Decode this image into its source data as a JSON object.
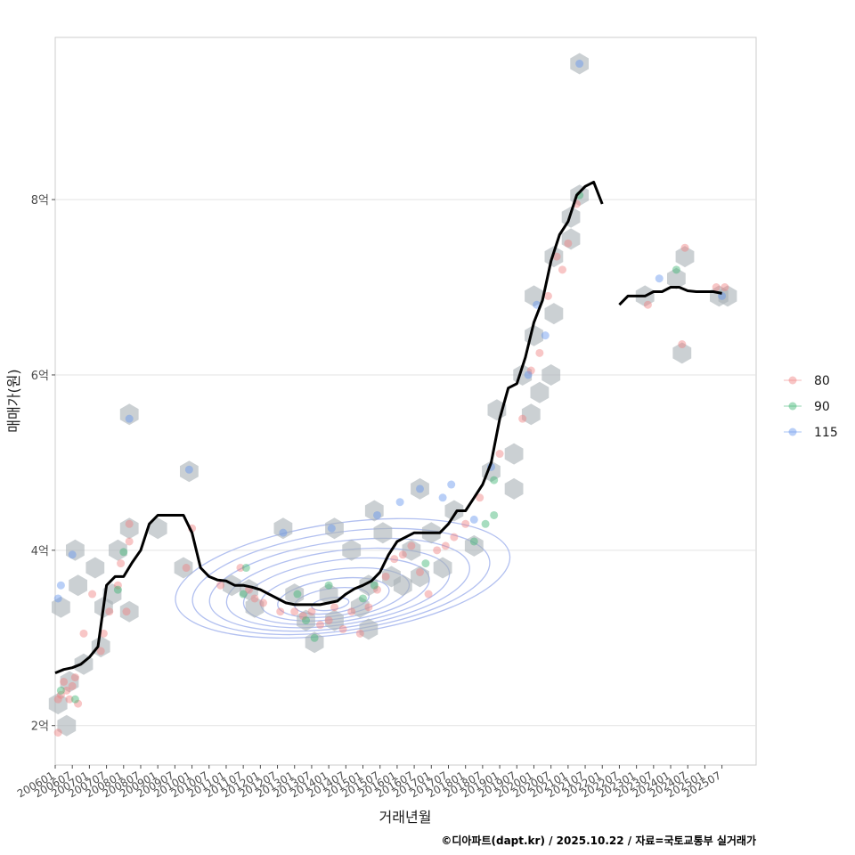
{
  "chart_data": {
    "type": "scatter",
    "xlabel": "거래년월",
    "ylabel": "매매가(원)",
    "caption": "©디아파트(dapt.kr) / 2025.10.22 / 자료=국토교통부 실거래가",
    "x_range": [
      "2006-01",
      "2026-07"
    ],
    "ylim": [
      1.55,
      9.85
    ],
    "y_ticks": [
      {
        "value": 2,
        "label": "2억"
      },
      {
        "value": 4,
        "label": "4억"
      },
      {
        "value": 6,
        "label": "6억"
      },
      {
        "value": 8,
        "label": "8억"
      }
    ],
    "x_ticks": [
      "200601",
      "200607",
      "200701",
      "200707",
      "200801",
      "200807",
      "200901",
      "200907",
      "201001",
      "201007",
      "201101",
      "201107",
      "201201",
      "201207",
      "201301",
      "201307",
      "201401",
      "201407",
      "201501",
      "201507",
      "201601",
      "201607",
      "201701",
      "201707",
      "201801",
      "201807",
      "201901",
      "201907",
      "202001",
      "202007",
      "202101",
      "202107",
      "202201",
      "202207",
      "202301",
      "202307",
      "202401",
      "202407",
      "202501",
      "202507"
    ],
    "legend": {
      "title": "",
      "position": "right",
      "entries": [
        {
          "label": "80",
          "color": "#f08080"
        },
        {
          "label": "90",
          "color": "#3cb371"
        },
        {
          "label": "115",
          "color": "#6495ed"
        }
      ]
    },
    "trend_line": {
      "name": "median",
      "color": "#000000",
      "segments": [
        [
          [
            "2006-01",
            2.6
          ],
          [
            "2006-04",
            2.64
          ],
          [
            "2006-07",
            2.66
          ],
          [
            "2006-10",
            2.7
          ],
          [
            "2007-01",
            2.78
          ],
          [
            "2007-04",
            2.9
          ],
          [
            "2007-07",
            3.6
          ],
          [
            "2007-10",
            3.7
          ],
          [
            "2008-01",
            3.7
          ],
          [
            "2008-04",
            3.86
          ],
          [
            "2008-07",
            4.0
          ],
          [
            "2008-10",
            4.3
          ],
          [
            "2009-01",
            4.4
          ],
          [
            "2009-04",
            4.4
          ],
          [
            "2009-07",
            4.4
          ],
          [
            "2009-10",
            4.4
          ],
          [
            "2010-01",
            4.2
          ],
          [
            "2010-04",
            3.8
          ],
          [
            "2010-07",
            3.7
          ],
          [
            "2010-10",
            3.66
          ],
          [
            "2011-01",
            3.65
          ],
          [
            "2011-04",
            3.6
          ],
          [
            "2011-07",
            3.6
          ],
          [
            "2011-10",
            3.58
          ],
          [
            "2012-01",
            3.55
          ],
          [
            "2012-04",
            3.5
          ],
          [
            "2012-07",
            3.45
          ],
          [
            "2012-10",
            3.4
          ],
          [
            "2013-01",
            3.38
          ],
          [
            "2013-04",
            3.38
          ],
          [
            "2013-07",
            3.38
          ],
          [
            "2013-10",
            3.38
          ],
          [
            "2014-01",
            3.4
          ],
          [
            "2014-04",
            3.42
          ],
          [
            "2014-07",
            3.5
          ],
          [
            "2014-10",
            3.56
          ],
          [
            "2015-01",
            3.6
          ],
          [
            "2015-04",
            3.65
          ],
          [
            "2015-07",
            3.75
          ],
          [
            "2015-10",
            3.95
          ],
          [
            "2016-01",
            4.1
          ],
          [
            "2016-04",
            4.15
          ],
          [
            "2016-07",
            4.2
          ],
          [
            "2016-10",
            4.2
          ],
          [
            "2017-01",
            4.2
          ],
          [
            "2017-04",
            4.2
          ],
          [
            "2017-07",
            4.3
          ],
          [
            "2017-10",
            4.45
          ],
          [
            "2018-01",
            4.45
          ],
          [
            "2018-04",
            4.6
          ],
          [
            "2018-07",
            4.75
          ],
          [
            "2018-10",
            5.0
          ],
          [
            "2019-01",
            5.5
          ],
          [
            "2019-04",
            5.85
          ],
          [
            "2019-07",
            5.9
          ],
          [
            "2019-10",
            6.2
          ],
          [
            "2020-01",
            6.6
          ],
          [
            "2020-04",
            6.85
          ],
          [
            "2020-07",
            7.3
          ],
          [
            "2020-10",
            7.6
          ],
          [
            "2021-01",
            7.75
          ],
          [
            "2021-04",
            8.05
          ],
          [
            "2021-07",
            8.15
          ],
          [
            "2021-10",
            8.2
          ],
          [
            "2022-01",
            7.95
          ]
        ],
        [
          [
            "2022-07",
            6.8
          ],
          [
            "2022-10",
            6.9
          ],
          [
            "2023-01",
            6.9
          ],
          [
            "2023-04",
            6.9
          ],
          [
            "2023-07",
            6.95
          ],
          [
            "2023-10",
            6.95
          ],
          [
            "2024-01",
            7.0
          ],
          [
            "2024-04",
            7.0
          ],
          [
            "2024-07",
            6.96
          ],
          [
            "2024-10",
            6.95
          ],
          [
            "2025-01",
            6.95
          ],
          [
            "2025-04",
            6.95
          ],
          [
            "2025-07",
            6.93
          ]
        ]
      ]
    },
    "points": [
      {
        "x": "2006-02",
        "y": 1.92,
        "series": "80"
      },
      {
        "x": "2006-02",
        "y": 2.3,
        "series": "80"
      },
      {
        "x": "2006-03",
        "y": 2.35,
        "series": "80"
      },
      {
        "x": "2006-04",
        "y": 2.5,
        "series": "80"
      },
      {
        "x": "2006-05",
        "y": 2.4,
        "series": "80"
      },
      {
        "x": "2006-06",
        "y": 2.3,
        "series": "80"
      },
      {
        "x": "2006-07",
        "y": 2.45,
        "series": "80"
      },
      {
        "x": "2006-08",
        "y": 2.55,
        "series": "80"
      },
      {
        "x": "2006-09",
        "y": 2.25,
        "series": "80"
      },
      {
        "x": "2006-11",
        "y": 3.05,
        "series": "80"
      },
      {
        "x": "2007-02",
        "y": 3.5,
        "series": "80"
      },
      {
        "x": "2007-05",
        "y": 2.85,
        "series": "80"
      },
      {
        "x": "2007-06",
        "y": 3.05,
        "series": "80"
      },
      {
        "x": "2007-08",
        "y": 3.3,
        "series": "80"
      },
      {
        "x": "2007-11",
        "y": 3.6,
        "series": "80"
      },
      {
        "x": "2007-12",
        "y": 3.85,
        "series": "80"
      },
      {
        "x": "2008-02",
        "y": 3.3,
        "series": "80"
      },
      {
        "x": "2008-03",
        "y": 4.1,
        "series": "80"
      },
      {
        "x": "2008-03",
        "y": 4.3,
        "series": "80"
      },
      {
        "x": "2009-11",
        "y": 3.8,
        "series": "80"
      },
      {
        "x": "2010-01",
        "y": 4.25,
        "series": "80"
      },
      {
        "x": "2010-11",
        "y": 3.6,
        "series": "80"
      },
      {
        "x": "2011-06",
        "y": 3.8,
        "series": "80"
      },
      {
        "x": "2011-09",
        "y": 3.55,
        "series": "80"
      },
      {
        "x": "2011-11",
        "y": 3.45,
        "series": "80"
      },
      {
        "x": "2012-02",
        "y": 3.4,
        "series": "80"
      },
      {
        "x": "2012-08",
        "y": 3.3,
        "series": "80"
      },
      {
        "x": "2013-01",
        "y": 3.3,
        "series": "80"
      },
      {
        "x": "2013-04",
        "y": 3.25,
        "series": "80"
      },
      {
        "x": "2013-07",
        "y": 3.3,
        "series": "80"
      },
      {
        "x": "2013-10",
        "y": 3.15,
        "series": "80"
      },
      {
        "x": "2014-01",
        "y": 3.2,
        "series": "80"
      },
      {
        "x": "2014-03",
        "y": 3.35,
        "series": "80"
      },
      {
        "x": "2014-06",
        "y": 3.1,
        "series": "80"
      },
      {
        "x": "2014-09",
        "y": 3.3,
        "series": "80"
      },
      {
        "x": "2014-12",
        "y": 3.05,
        "series": "80"
      },
      {
        "x": "2015-03",
        "y": 3.35,
        "series": "80"
      },
      {
        "x": "2015-06",
        "y": 3.55,
        "series": "80"
      },
      {
        "x": "2015-09",
        "y": 3.7,
        "series": "80"
      },
      {
        "x": "2015-12",
        "y": 3.9,
        "series": "80"
      },
      {
        "x": "2016-03",
        "y": 3.95,
        "series": "80"
      },
      {
        "x": "2016-06",
        "y": 4.05,
        "series": "80"
      },
      {
        "x": "2016-09",
        "y": 3.75,
        "series": "80"
      },
      {
        "x": "2016-12",
        "y": 3.5,
        "series": "80"
      },
      {
        "x": "2017-03",
        "y": 4.0,
        "series": "80"
      },
      {
        "x": "2017-06",
        "y": 4.05,
        "series": "80"
      },
      {
        "x": "2017-09",
        "y": 4.15,
        "series": "80"
      },
      {
        "x": "2018-01",
        "y": 4.3,
        "series": "80"
      },
      {
        "x": "2018-06",
        "y": 4.6,
        "series": "80"
      },
      {
        "x": "2019-01",
        "y": 5.1,
        "series": "80"
      },
      {
        "x": "2019-09",
        "y": 5.5,
        "series": "80"
      },
      {
        "x": "2019-12",
        "y": 6.05,
        "series": "80"
      },
      {
        "x": "2020-03",
        "y": 6.25,
        "series": "80"
      },
      {
        "x": "2020-06",
        "y": 6.9,
        "series": "80"
      },
      {
        "x": "2020-09",
        "y": 7.35,
        "series": "80"
      },
      {
        "x": "2020-11",
        "y": 7.2,
        "series": "80"
      },
      {
        "x": "2021-01",
        "y": 7.5,
        "series": "80"
      },
      {
        "x": "2021-04",
        "y": 7.95,
        "series": "80"
      },
      {
        "x": "2023-05",
        "y": 6.8,
        "series": "80"
      },
      {
        "x": "2024-05",
        "y": 6.35,
        "series": "80"
      },
      {
        "x": "2024-06",
        "y": 7.45,
        "series": "80"
      },
      {
        "x": "2025-05",
        "y": 7.0,
        "series": "80"
      },
      {
        "x": "2025-08",
        "y": 7.0,
        "series": "80"
      },
      {
        "x": "2006-03",
        "y": 2.4,
        "series": "90"
      },
      {
        "x": "2006-08",
        "y": 2.3,
        "series": "90"
      },
      {
        "x": "2007-11",
        "y": 3.55,
        "series": "90"
      },
      {
        "x": "2008-01",
        "y": 3.98,
        "series": "90"
      },
      {
        "x": "2011-07",
        "y": 3.5,
        "series": "90"
      },
      {
        "x": "2011-08",
        "y": 3.8,
        "series": "90"
      },
      {
        "x": "2013-02",
        "y": 3.5,
        "series": "90"
      },
      {
        "x": "2013-05",
        "y": 3.2,
        "series": "90"
      },
      {
        "x": "2013-08",
        "y": 3.0,
        "series": "90"
      },
      {
        "x": "2014-01",
        "y": 3.6,
        "series": "90"
      },
      {
        "x": "2015-01",
        "y": 3.45,
        "series": "90"
      },
      {
        "x": "2015-05",
        "y": 3.6,
        "series": "90"
      },
      {
        "x": "2016-11",
        "y": 3.85,
        "series": "90"
      },
      {
        "x": "2018-04",
        "y": 4.1,
        "series": "90"
      },
      {
        "x": "2018-08",
        "y": 4.3,
        "series": "90"
      },
      {
        "x": "2018-11",
        "y": 4.8,
        "series": "90"
      },
      {
        "x": "2018-11",
        "y": 4.4,
        "series": "90"
      },
      {
        "x": "2021-05",
        "y": 8.05,
        "series": "90"
      },
      {
        "x": "2024-03",
        "y": 7.2,
        "series": "90"
      },
      {
        "x": "2006-02",
        "y": 3.45,
        "series": "115"
      },
      {
        "x": "2006-03",
        "y": 3.6,
        "series": "115"
      },
      {
        "x": "2006-07",
        "y": 3.95,
        "series": "115"
      },
      {
        "x": "2008-03",
        "y": 5.5,
        "series": "115"
      },
      {
        "x": "2009-12",
        "y": 4.92,
        "series": "115"
      },
      {
        "x": "2012-09",
        "y": 4.2,
        "series": "115"
      },
      {
        "x": "2014-02",
        "y": 4.25,
        "series": "115"
      },
      {
        "x": "2015-06",
        "y": 4.4,
        "series": "115"
      },
      {
        "x": "2016-02",
        "y": 4.55,
        "series": "115"
      },
      {
        "x": "2016-09",
        "y": 4.7,
        "series": "115"
      },
      {
        "x": "2017-05",
        "y": 4.6,
        "series": "115"
      },
      {
        "x": "2017-08",
        "y": 4.75,
        "series": "115"
      },
      {
        "x": "2018-04",
        "y": 4.35,
        "series": "115"
      },
      {
        "x": "2018-10",
        "y": 4.95,
        "series": "115"
      },
      {
        "x": "2019-11",
        "y": 6.0,
        "series": "115"
      },
      {
        "x": "2020-02",
        "y": 6.8,
        "series": "115"
      },
      {
        "x": "2020-05",
        "y": 6.45,
        "series": "115"
      },
      {
        "x": "2021-05",
        "y": 9.55,
        "series": "115"
      },
      {
        "x": "2023-09",
        "y": 7.1,
        "series": "115"
      },
      {
        "x": "2025-07",
        "y": 6.9,
        "series": "115"
      }
    ],
    "hexbins": [
      {
        "x": "2006-02",
        "y": 2.25
      },
      {
        "x": "2006-05",
        "y": 2.0
      },
      {
        "x": "2006-06",
        "y": 2.5
      },
      {
        "x": "2006-03",
        "y": 3.35
      },
      {
        "x": "2006-09",
        "y": 3.6
      },
      {
        "x": "2006-08",
        "y": 4.0
      },
      {
        "x": "2006-11",
        "y": 2.7
      },
      {
        "x": "2007-03",
        "y": 3.8
      },
      {
        "x": "2007-06",
        "y": 3.35
      },
      {
        "x": "2007-05",
        "y": 2.9
      },
      {
        "x": "2007-09",
        "y": 3.5
      },
      {
        "x": "2007-11",
        "y": 4.0
      },
      {
        "x": "2008-03",
        "y": 3.3
      },
      {
        "x": "2008-03",
        "y": 4.25
      },
      {
        "x": "2008-03",
        "y": 5.55
      },
      {
        "x": "2009-01",
        "y": 4.25
      },
      {
        "x": "2009-10",
        "y": 3.8
      },
      {
        "x": "2009-12",
        "y": 4.9
      },
      {
        "x": "2011-03",
        "y": 3.6
      },
      {
        "x": "2011-09",
        "y": 3.55
      },
      {
        "x": "2011-11",
        "y": 3.35
      },
      {
        "x": "2012-09",
        "y": 4.25
      },
      {
        "x": "2013-01",
        "y": 3.5
      },
      {
        "x": "2013-05",
        "y": 3.2
      },
      {
        "x": "2013-08",
        "y": 2.95
      },
      {
        "x": "2014-01",
        "y": 3.5
      },
      {
        "x": "2014-03",
        "y": 3.2
      },
      {
        "x": "2014-03",
        "y": 4.25
      },
      {
        "x": "2014-09",
        "y": 4.0
      },
      {
        "x": "2014-12",
        "y": 3.35
      },
      {
        "x": "2015-03",
        "y": 3.1
      },
      {
        "x": "2015-03",
        "y": 3.6
      },
      {
        "x": "2015-05",
        "y": 4.45
      },
      {
        "x": "2015-08",
        "y": 4.2
      },
      {
        "x": "2015-11",
        "y": 3.7
      },
      {
        "x": "2016-03",
        "y": 3.6
      },
      {
        "x": "2016-06",
        "y": 4.0
      },
      {
        "x": "2016-09",
        "y": 3.7
      },
      {
        "x": "2016-09",
        "y": 4.7
      },
      {
        "x": "2017-01",
        "y": 4.2
      },
      {
        "x": "2017-05",
        "y": 3.8
      },
      {
        "x": "2017-09",
        "y": 4.45
      },
      {
        "x": "2018-04",
        "y": 4.05
      },
      {
        "x": "2018-10",
        "y": 4.9
      },
      {
        "x": "2018-12",
        "y": 5.6
      },
      {
        "x": "2019-06",
        "y": 4.7
      },
      {
        "x": "2019-06",
        "y": 5.1
      },
      {
        "x": "2019-09",
        "y": 6.0
      },
      {
        "x": "2019-12",
        "y": 5.55
      },
      {
        "x": "2020-03",
        "y": 5.8
      },
      {
        "x": "2020-01",
        "y": 6.45
      },
      {
        "x": "2020-01",
        "y": 6.9
      },
      {
        "x": "2020-07",
        "y": 6.0
      },
      {
        "x": "2020-08",
        "y": 6.7
      },
      {
        "x": "2020-08",
        "y": 7.35
      },
      {
        "x": "2021-02",
        "y": 7.55
      },
      {
        "x": "2021-02",
        "y": 7.8
      },
      {
        "x": "2021-05",
        "y": 8.05
      },
      {
        "x": "2021-05",
        "y": 9.55
      },
      {
        "x": "2023-04",
        "y": 6.9
      },
      {
        "x": "2024-05",
        "y": 6.25
      },
      {
        "x": "2024-03",
        "y": 7.1
      },
      {
        "x": "2024-06",
        "y": 7.35
      },
      {
        "x": "2025-06",
        "y": 6.9
      },
      {
        "x": "2025-09",
        "y": 6.9
      }
    ],
    "density_contours": {
      "color": "#aab9ee",
      "levels": 9,
      "center": [
        "2014-01",
        3.35
      ],
      "spread": [
        37,
        0.55
      ]
    }
  }
}
